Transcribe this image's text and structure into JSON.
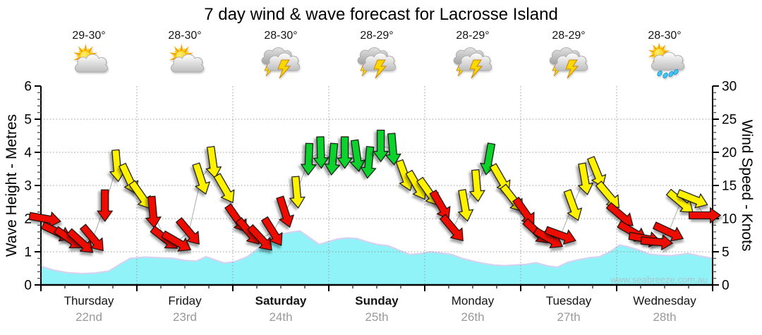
{
  "title": "7 day wind & wave forecast for Lacrosse Island",
  "watermark": "www.seabreeze.com.au",
  "days": [
    {
      "name": "Thursday",
      "date": "22nd",
      "temp": "29-30°",
      "icon": "sun-cloud",
      "bold": false
    },
    {
      "name": "Friday",
      "date": "23rd",
      "temp": "28-30°",
      "icon": "sun-cloud",
      "bold": false
    },
    {
      "name": "Saturday",
      "date": "24th",
      "temp": "28-30°",
      "icon": "storm",
      "bold": true
    },
    {
      "name": "Sunday",
      "date": "25th",
      "temp": "28-29°",
      "icon": "storm",
      "bold": true
    },
    {
      "name": "Monday",
      "date": "26th",
      "temp": "28-29°",
      "icon": "storm",
      "bold": false
    },
    {
      "name": "Tuesday",
      "date": "27th",
      "temp": "28-29°",
      "icon": "storm",
      "bold": false
    },
    {
      "name": "Wednesday",
      "date": "28th",
      "temp": "28-30°",
      "icon": "sun-rain",
      "bold": false
    }
  ],
  "chart_data": {
    "type": "area",
    "title": "7 day wind & wave forecast for Lacrosse Island",
    "left_axis": {
      "label": "Wave Height - Metres",
      "min": 0,
      "max": 6,
      "ticks": [
        0,
        1,
        2,
        3,
        4,
        5,
        6
      ]
    },
    "right_axis": {
      "label": "Wind Speed - Knots",
      "min": 0,
      "max": 30,
      "ticks": [
        0,
        5,
        10,
        15,
        20,
        25,
        30
      ]
    },
    "grid": true,
    "wind_colors": {
      "red": "#EC0800",
      "yellow": "#FFF200",
      "green": "#0CD22D"
    },
    "wind_series": {
      "name": "Wind speed and direction",
      "unit": "knots",
      "interval_hours": 3,
      "points": [
        {
          "kn": 10,
          "dir": 100,
          "c": "red"
        },
        {
          "kn": 8,
          "dir": 115,
          "c": "red"
        },
        {
          "kn": 7,
          "dir": 125,
          "c": "red"
        },
        {
          "kn": 6.5,
          "dir": 132,
          "c": "red"
        },
        {
          "kn": 7,
          "dir": 140,
          "c": "red"
        },
        {
          "kn": 12,
          "dir": 180,
          "c": "red"
        },
        {
          "kn": 18,
          "dir": 175,
          "c": "yellow"
        },
        {
          "kn": 16,
          "dir": 155,
          "c": "yellow"
        },
        {
          "kn": 13.5,
          "dir": 145,
          "c": "yellow"
        },
        {
          "kn": 11,
          "dir": 175,
          "c": "red"
        },
        {
          "kn": 7,
          "dir": 128,
          "c": "red"
        },
        {
          "kn": 6.5,
          "dir": 120,
          "c": "red"
        },
        {
          "kn": 8,
          "dir": 140,
          "c": "red"
        },
        {
          "kn": 16,
          "dir": 162,
          "c": "yellow"
        },
        {
          "kn": 18.5,
          "dir": 172,
          "c": "yellow"
        },
        {
          "kn": 14.5,
          "dir": 150,
          "c": "yellow"
        },
        {
          "kn": 10,
          "dir": 145,
          "c": "red"
        },
        {
          "kn": 8,
          "dir": 140,
          "c": "red"
        },
        {
          "kn": 7,
          "dir": 137,
          "c": "red"
        },
        {
          "kn": 8,
          "dir": 148,
          "c": "red"
        },
        {
          "kn": 11,
          "dir": 162,
          "c": "red"
        },
        {
          "kn": 14,
          "dir": 175,
          "c": "yellow"
        },
        {
          "kn": 19,
          "dir": 182,
          "c": "green"
        },
        {
          "kn": 20,
          "dir": 178,
          "c": "green"
        },
        {
          "kn": 19,
          "dir": 185,
          "c": "green"
        },
        {
          "kn": 20,
          "dir": 180,
          "c": "green"
        },
        {
          "kn": 19.5,
          "dir": 172,
          "c": "green"
        },
        {
          "kn": 18.5,
          "dir": 185,
          "c": "green"
        },
        {
          "kn": 21,
          "dir": 180,
          "c": "green"
        },
        {
          "kn": 20.5,
          "dir": 175,
          "c": "green"
        },
        {
          "kn": 16.5,
          "dir": 160,
          "c": "yellow"
        },
        {
          "kn": 15,
          "dir": 150,
          "c": "yellow"
        },
        {
          "kn": 14,
          "dir": 145,
          "c": "yellow"
        },
        {
          "kn": 12,
          "dir": 150,
          "c": "red"
        },
        {
          "kn": 8.5,
          "dir": 140,
          "c": "red"
        },
        {
          "kn": 12,
          "dir": 170,
          "c": "yellow"
        },
        {
          "kn": 15,
          "dir": 175,
          "c": "yellow"
        },
        {
          "kn": 19,
          "dir": 190,
          "c": "green"
        },
        {
          "kn": 16,
          "dir": 150,
          "c": "yellow"
        },
        {
          "kn": 13,
          "dir": 142,
          "c": "yellow"
        },
        {
          "kn": 11,
          "dir": 145,
          "c": "red"
        },
        {
          "kn": 8,
          "dir": 133,
          "c": "red"
        },
        {
          "kn": 7,
          "dir": 120,
          "c": "red"
        },
        {
          "kn": 7.5,
          "dir": 110,
          "c": "red"
        },
        {
          "kn": 12,
          "dir": 160,
          "c": "yellow"
        },
        {
          "kn": 16,
          "dir": 170,
          "c": "yellow"
        },
        {
          "kn": 17,
          "dir": 158,
          "c": "yellow"
        },
        {
          "kn": 13.5,
          "dir": 140,
          "c": "yellow"
        },
        {
          "kn": 10.5,
          "dir": 130,
          "c": "red"
        },
        {
          "kn": 8,
          "dir": 120,
          "c": "red"
        },
        {
          "kn": 7,
          "dir": 100,
          "c": "red"
        },
        {
          "kn": 6.5,
          "dir": 95,
          "c": "red"
        },
        {
          "kn": 8,
          "dir": 115,
          "c": "red"
        },
        {
          "kn": 12.5,
          "dir": 130,
          "c": "yellow"
        },
        {
          "kn": 13,
          "dir": 112,
          "c": "yellow"
        },
        {
          "kn": 10.5,
          "dir": 90,
          "c": "red"
        }
      ]
    },
    "wave_series": {
      "name": "Wave height",
      "unit": "metres",
      "fill": "#8FF3F7",
      "outline": "#D4D2F0",
      "points": [
        [
          0.0,
          0.56
        ],
        [
          0.13,
          0.45
        ],
        [
          0.27,
          0.37
        ],
        [
          0.42,
          0.34
        ],
        [
          0.57,
          0.36
        ],
        [
          0.71,
          0.42
        ],
        [
          0.82,
          0.62
        ],
        [
          0.93,
          0.8
        ],
        [
          1.08,
          0.84
        ],
        [
          1.23,
          0.82
        ],
        [
          1.38,
          0.8
        ],
        [
          1.5,
          0.74
        ],
        [
          1.62,
          0.72
        ],
        [
          1.72,
          0.85
        ],
        [
          1.82,
          0.75
        ],
        [
          1.91,
          0.66
        ],
        [
          2.02,
          0.7
        ],
        [
          2.15,
          0.85
        ],
        [
          2.29,
          1.15
        ],
        [
          2.44,
          1.5
        ],
        [
          2.59,
          1.58
        ],
        [
          2.7,
          1.63
        ],
        [
          2.81,
          1.4
        ],
        [
          2.9,
          1.22
        ],
        [
          2.99,
          1.3
        ],
        [
          3.09,
          1.38
        ],
        [
          3.19,
          1.42
        ],
        [
          3.29,
          1.4
        ],
        [
          3.4,
          1.3
        ],
        [
          3.51,
          1.22
        ],
        [
          3.62,
          1.18
        ],
        [
          3.73,
          1.05
        ],
        [
          3.84,
          0.92
        ],
        [
          3.95,
          0.94
        ],
        [
          4.06,
          1.0
        ],
        [
          4.17,
          0.96
        ],
        [
          4.28,
          0.92
        ],
        [
          4.39,
          0.8
        ],
        [
          4.5,
          0.72
        ],
        [
          4.61,
          0.65
        ],
        [
          4.72,
          0.6
        ],
        [
          4.83,
          0.58
        ],
        [
          4.94,
          0.6
        ],
        [
          5.05,
          0.62
        ],
        [
          5.16,
          0.67
        ],
        [
          5.27,
          0.58
        ],
        [
          5.38,
          0.53
        ],
        [
          5.49,
          0.68
        ],
        [
          5.6,
          0.76
        ],
        [
          5.71,
          0.82
        ],
        [
          5.82,
          0.85
        ],
        [
          5.93,
          1.0
        ],
        [
          6.03,
          1.2
        ],
        [
          6.12,
          1.15
        ],
        [
          6.23,
          1.05
        ],
        [
          6.34,
          0.93
        ],
        [
          6.45,
          0.9
        ],
        [
          6.56,
          0.88
        ],
        [
          6.67,
          0.92
        ],
        [
          6.74,
          0.95
        ],
        [
          6.85,
          0.88
        ],
        [
          7.0,
          0.8
        ]
      ]
    }
  }
}
